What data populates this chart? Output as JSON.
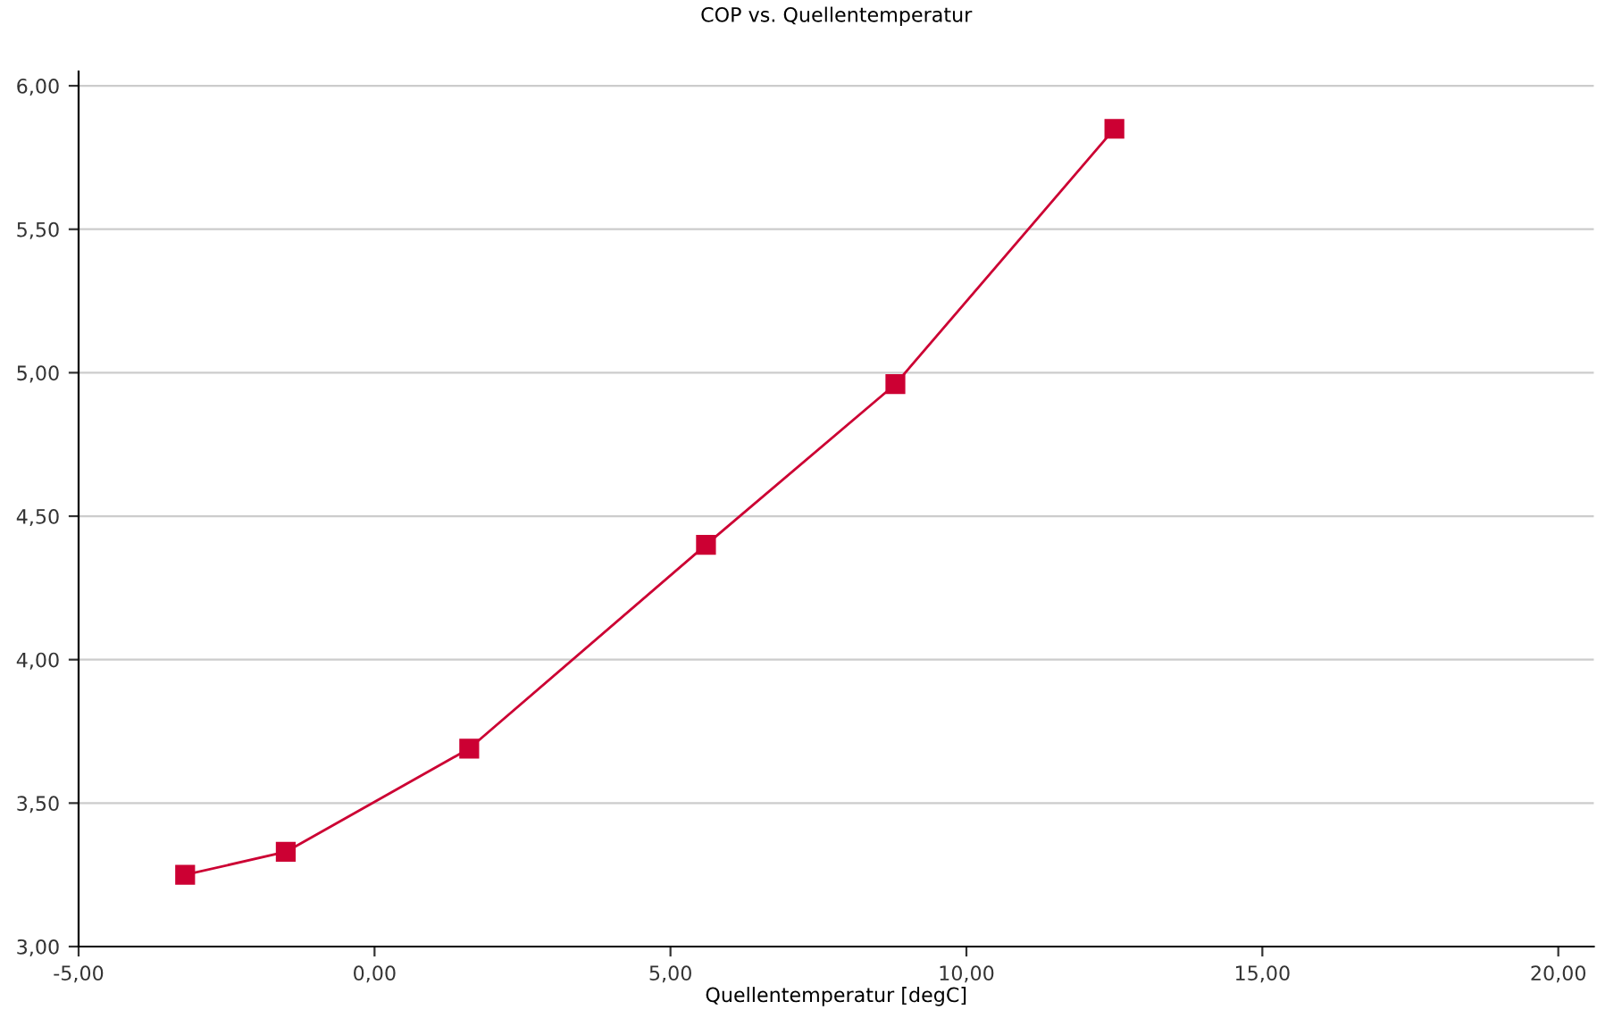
{
  "chart_data": {
    "type": "line",
    "title": "COP vs. Quellentemperatur",
    "xlabel": "Quellentemperatur [degC]",
    "series": [
      {
        "color": "#cc0033",
        "x": [
          -3.2,
          -1.5,
          1.6,
          5.6,
          8.8,
          12.5
        ],
        "values": [
          3.25,
          3.33,
          3.69,
          4.4,
          4.96,
          5.85
        ]
      }
    ],
    "xlim": [
      -5,
      20.6
    ],
    "ylim": [
      3,
      6.05
    ],
    "xticks": [
      {
        "value": -5,
        "label": "-5,00"
      },
      {
        "value": 0,
        "label": "0,00"
      },
      {
        "value": 5,
        "label": "5,00"
      },
      {
        "value": 10,
        "label": "10,00"
      },
      {
        "value": 15,
        "label": "15,00"
      },
      {
        "value": 20,
        "label": "20,00"
      }
    ],
    "yticks": [
      {
        "value": 3,
        "label": "3,00"
      },
      {
        "value": 3.5,
        "label": "3,50"
      },
      {
        "value": 4,
        "label": "4,00"
      },
      {
        "value": 4.5,
        "label": "4,50"
      },
      {
        "value": 5,
        "label": "5,00"
      },
      {
        "value": 5.5,
        "label": "5,50"
      },
      {
        "value": 6,
        "label": "6,00"
      }
    ],
    "grid": "y",
    "marker": "square",
    "line_style": "solid"
  }
}
